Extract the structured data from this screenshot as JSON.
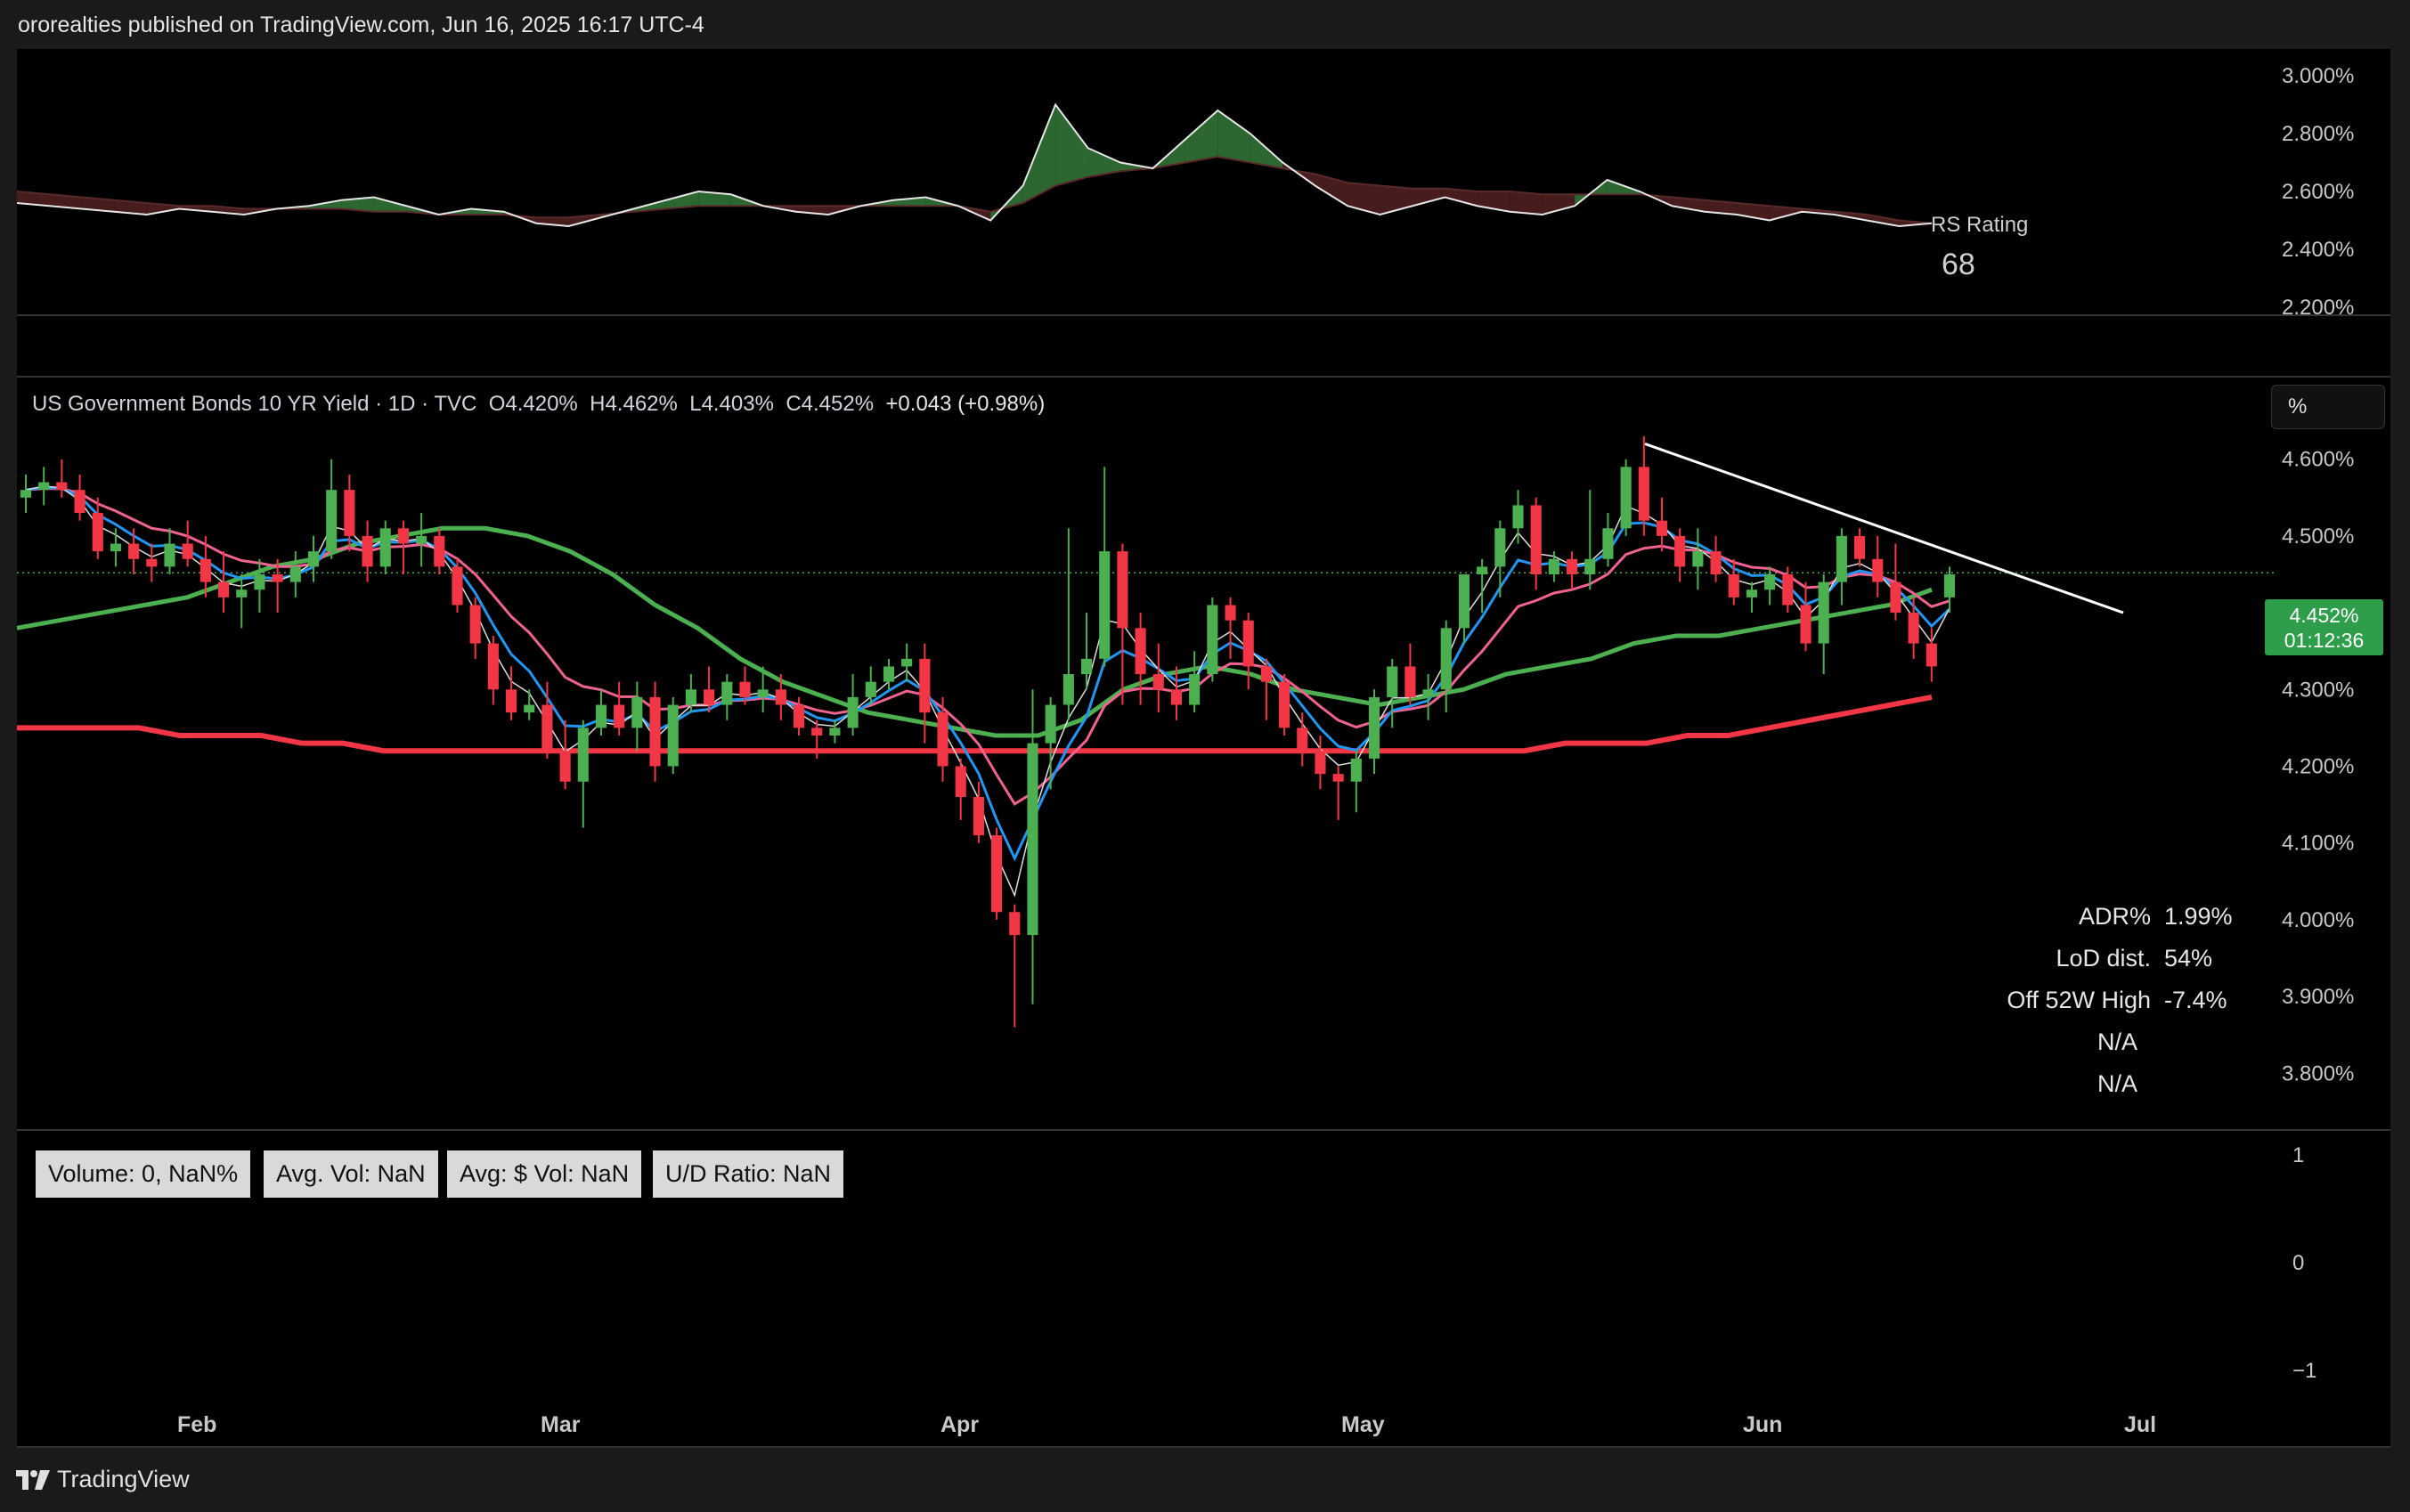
{
  "header": {
    "text": "ororealties published on TradingView.com, Jun 16, 2025 16:17 UTC-4"
  },
  "footer": {
    "brand": "TradingView"
  },
  "rs_panel": {
    "label": "RS Rating",
    "value": "68",
    "axis_ticks": [
      "3.000%",
      "2.800%",
      "2.600%",
      "2.400%",
      "2.200%"
    ]
  },
  "legend": {
    "symbol": "US Government Bonds 10 YR Yield · 1D · TVC",
    "o_label": "O",
    "o_value": "4.420%",
    "h_label": "H",
    "h_value": "4.462%",
    "l_label": "L",
    "l_value": "4.403%",
    "c_label": "C",
    "c_value": "4.452%",
    "change": "+0.043 (+0.98%)"
  },
  "scale_button": "%",
  "price_tag": {
    "price": "4.452%",
    "countdown": "01:12:36"
  },
  "stats": [
    {
      "label": "ADR%",
      "value": "1.99%"
    },
    {
      "label": "LoD dist.",
      "value": "54%"
    },
    {
      "label": "Off 52W High",
      "value": "-7.4%"
    },
    {
      "label": "N/A",
      "value": ""
    },
    {
      "label": "N/A",
      "value": ""
    }
  ],
  "volume_boxes": [
    "Volume: 0, NaN%",
    "Avg. Vol: NaN",
    "Avg: $ Vol: NaN",
    "U/D Ratio: NaN"
  ],
  "volume_axis_ticks": [
    "1",
    "0",
    "−1"
  ],
  "colors": {
    "up": "#4caf50",
    "down": "#f23645",
    "ma_green": "#4caf50",
    "ma_red": "#f23645",
    "ma_blue": "#2196f3",
    "ma_pink": "#f06292",
    "ma_cyan": "#26c6da",
    "rs_up": "#2e6b34",
    "rs_down": "#4a1e1e"
  },
  "chart_data": {
    "type": "candlestick",
    "title": "US Government Bonds 10 YR Yield · 1D · TVC",
    "y_unit": "%",
    "ylim": [
      3.77,
      4.69
    ],
    "y_ticks": [
      "4.600%",
      "4.500%",
      "4.400%",
      "4.300%",
      "4.200%",
      "4.100%",
      "4.000%",
      "3.900%",
      "3.800%"
    ],
    "x_ticks": [
      "Feb",
      "Mar",
      "Apr",
      "May",
      "Jun",
      "Jul"
    ],
    "last_price": 4.452,
    "candles": [
      [
        4.55,
        4.58,
        4.53,
        4.56
      ],
      [
        4.56,
        4.59,
        4.54,
        4.57
      ],
      [
        4.57,
        4.6,
        4.55,
        4.56
      ],
      [
        4.56,
        4.58,
        4.52,
        4.53
      ],
      [
        4.53,
        4.55,
        4.47,
        4.48
      ],
      [
        4.48,
        4.51,
        4.46,
        4.49
      ],
      [
        4.49,
        4.51,
        4.45,
        4.47
      ],
      [
        4.47,
        4.49,
        4.44,
        4.46
      ],
      [
        4.46,
        4.51,
        4.45,
        4.49
      ],
      [
        4.49,
        4.52,
        4.46,
        4.47
      ],
      [
        4.47,
        4.5,
        4.42,
        4.44
      ],
      [
        4.44,
        4.48,
        4.4,
        4.42
      ],
      [
        4.42,
        4.45,
        4.38,
        4.43
      ],
      [
        4.43,
        4.47,
        4.4,
        4.45
      ],
      [
        4.45,
        4.47,
        4.4,
        4.44
      ],
      [
        4.44,
        4.48,
        4.42,
        4.46
      ],
      [
        4.46,
        4.5,
        4.44,
        4.48
      ],
      [
        4.48,
        4.6,
        4.47,
        4.56
      ],
      [
        4.56,
        4.58,
        4.48,
        4.5
      ],
      [
        4.5,
        4.52,
        4.44,
        4.46
      ],
      [
        4.46,
        4.52,
        4.45,
        4.51
      ],
      [
        4.51,
        4.52,
        4.45,
        4.49
      ],
      [
        4.49,
        4.53,
        4.46,
        4.5
      ],
      [
        4.5,
        4.51,
        4.45,
        4.46
      ],
      [
        4.46,
        4.47,
        4.4,
        4.41
      ],
      [
        4.41,
        4.42,
        4.34,
        4.36
      ],
      [
        4.36,
        4.37,
        4.28,
        4.3
      ],
      [
        4.3,
        4.33,
        4.26,
        4.27
      ],
      [
        4.27,
        4.3,
        4.26,
        4.28
      ],
      [
        4.28,
        4.31,
        4.21,
        4.22
      ],
      [
        4.22,
        4.26,
        4.17,
        4.18
      ],
      [
        4.18,
        4.26,
        4.12,
        4.25
      ],
      [
        4.25,
        4.3,
        4.24,
        4.28
      ],
      [
        4.28,
        4.31,
        4.24,
        4.25
      ],
      [
        4.25,
        4.31,
        4.22,
        4.29
      ],
      [
        4.29,
        4.31,
        4.18,
        4.2
      ],
      [
        4.2,
        4.29,
        4.19,
        4.28
      ],
      [
        4.28,
        4.32,
        4.27,
        4.3
      ],
      [
        4.3,
        4.33,
        4.27,
        4.28
      ],
      [
        4.28,
        4.32,
        4.26,
        4.31
      ],
      [
        4.31,
        4.33,
        4.28,
        4.29
      ],
      [
        4.29,
        4.33,
        4.27,
        4.3
      ],
      [
        4.3,
        4.32,
        4.26,
        4.28
      ],
      [
        4.28,
        4.29,
        4.24,
        4.25
      ],
      [
        4.25,
        4.26,
        4.21,
        4.24
      ],
      [
        4.24,
        4.26,
        4.23,
        4.25
      ],
      [
        4.25,
        4.32,
        4.24,
        4.29
      ],
      [
        4.29,
        4.33,
        4.28,
        4.31
      ],
      [
        4.31,
        4.34,
        4.3,
        4.33
      ],
      [
        4.33,
        4.36,
        4.31,
        4.34
      ],
      [
        4.34,
        4.36,
        4.23,
        4.27
      ],
      [
        4.27,
        4.29,
        4.18,
        4.2
      ],
      [
        4.2,
        4.21,
        4.13,
        4.16
      ],
      [
        4.16,
        4.18,
        4.1,
        4.11
      ],
      [
        4.11,
        4.12,
        4.0,
        4.01
      ],
      [
        4.01,
        4.02,
        3.86,
        3.98
      ],
      [
        3.98,
        4.3,
        3.89,
        4.23
      ],
      [
        4.23,
        4.29,
        4.17,
        4.28
      ],
      [
        4.28,
        4.51,
        4.26,
        4.32
      ],
      [
        4.32,
        4.4,
        4.3,
        4.34
      ],
      [
        4.34,
        4.59,
        4.33,
        4.48
      ],
      [
        4.48,
        4.49,
        4.28,
        4.38
      ],
      [
        4.38,
        4.4,
        4.28,
        4.32
      ],
      [
        4.32,
        4.36,
        4.27,
        4.3
      ],
      [
        4.3,
        4.33,
        4.26,
        4.28
      ],
      [
        4.28,
        4.35,
        4.27,
        4.32
      ],
      [
        4.32,
        4.42,
        4.31,
        4.41
      ],
      [
        4.41,
        4.42,
        4.34,
        4.39
      ],
      [
        4.39,
        4.4,
        4.3,
        4.33
      ],
      [
        4.33,
        4.34,
        4.26,
        4.31
      ],
      [
        4.31,
        4.32,
        4.24,
        4.25
      ],
      [
        4.25,
        4.27,
        4.2,
        4.22
      ],
      [
        4.22,
        4.24,
        4.17,
        4.19
      ],
      [
        4.19,
        4.2,
        4.13,
        4.18
      ],
      [
        4.18,
        4.22,
        4.14,
        4.21
      ],
      [
        4.21,
        4.3,
        4.19,
        4.29
      ],
      [
        4.29,
        4.34,
        4.25,
        4.33
      ],
      [
        4.33,
        4.36,
        4.28,
        4.29
      ],
      [
        4.29,
        4.32,
        4.26,
        4.3
      ],
      [
        4.3,
        4.39,
        4.27,
        4.38
      ],
      [
        4.38,
        4.45,
        4.36,
        4.45
      ],
      [
        4.45,
        4.47,
        4.4,
        4.46
      ],
      [
        4.46,
        4.52,
        4.42,
        4.51
      ],
      [
        4.51,
        4.56,
        4.49,
        4.54
      ],
      [
        4.54,
        4.55,
        4.43,
        4.45
      ],
      [
        4.45,
        4.48,
        4.44,
        4.47
      ],
      [
        4.47,
        4.48,
        4.43,
        4.45
      ],
      [
        4.45,
        4.56,
        4.43,
        4.47
      ],
      [
        4.47,
        4.53,
        4.46,
        4.51
      ],
      [
        4.51,
        4.6,
        4.5,
        4.59
      ],
      [
        4.59,
        4.63,
        4.5,
        4.52
      ],
      [
        4.52,
        4.55,
        4.48,
        4.5
      ],
      [
        4.5,
        4.51,
        4.44,
        4.46
      ],
      [
        4.46,
        4.51,
        4.43,
        4.48
      ],
      [
        4.48,
        4.5,
        4.44,
        4.45
      ],
      [
        4.45,
        4.47,
        4.41,
        4.42
      ],
      [
        4.42,
        4.44,
        4.4,
        4.43
      ],
      [
        4.43,
        4.46,
        4.41,
        4.45
      ],
      [
        4.45,
        4.46,
        4.4,
        4.41
      ],
      [
        4.41,
        4.44,
        4.35,
        4.36
      ],
      [
        4.36,
        4.45,
        4.32,
        4.44
      ],
      [
        4.44,
        4.51,
        4.41,
        4.5
      ],
      [
        4.5,
        4.51,
        4.46,
        4.47
      ],
      [
        4.47,
        4.5,
        4.42,
        4.44
      ],
      [
        4.44,
        4.49,
        4.39,
        4.4
      ],
      [
        4.4,
        4.42,
        4.34,
        4.36
      ],
      [
        4.36,
        4.38,
        4.31,
        4.33
      ],
      [
        4.42,
        4.46,
        4.4,
        4.45
      ]
    ],
    "ma_20d_green": [
      4.38,
      4.39,
      4.4,
      4.41,
      4.42,
      4.44,
      4.46,
      4.47,
      4.49,
      4.5,
      4.51,
      4.51,
      4.5,
      4.48,
      4.45,
      4.41,
      4.38,
      4.34,
      4.31,
      4.29,
      4.27,
      4.26,
      4.25,
      4.24,
      4.24,
      4.26,
      4.3,
      4.32,
      4.33,
      4.32,
      4.3,
      4.29,
      4.28,
      4.29,
      4.3,
      4.32,
      4.33,
      4.34,
      4.36,
      4.37,
      4.37,
      4.38,
      4.39,
      4.4,
      4.41,
      4.43
    ],
    "ma_200d_red": [
      4.25,
      4.25,
      4.25,
      4.25,
      4.24,
      4.24,
      4.24,
      4.23,
      4.23,
      4.22,
      4.22,
      4.22,
      4.22,
      4.22,
      4.22,
      4.22,
      4.22,
      4.22,
      4.22,
      4.22,
      4.22,
      4.22,
      4.22,
      4.22,
      4.22,
      4.22,
      4.22,
      4.22,
      4.22,
      4.22,
      4.22,
      4.22,
      4.22,
      4.22,
      4.22,
      4.22,
      4.22,
      4.22,
      4.23,
      4.23,
      4.23,
      4.24,
      4.24,
      4.25,
      4.26,
      4.27,
      4.28,
      4.29
    ],
    "trendline": [
      [
        4.62,
        4.4
      ]
    ],
    "rs_line": [
      2.56,
      2.55,
      2.54,
      2.53,
      2.52,
      2.54,
      2.53,
      2.52,
      2.54,
      2.55,
      2.57,
      2.58,
      2.55,
      2.52,
      2.54,
      2.53,
      2.49,
      2.48,
      2.51,
      2.54,
      2.57,
      2.6,
      2.59,
      2.55,
      2.53,
      2.52,
      2.55,
      2.57,
      2.58,
      2.55,
      2.5,
      2.62,
      2.9,
      2.75,
      2.7,
      2.68,
      2.78,
      2.88,
      2.8,
      2.7,
      2.62,
      2.55,
      2.52,
      2.55,
      2.58,
      2.55,
      2.53,
      2.52,
      2.55,
      2.64,
      2.6,
      2.55,
      2.53,
      2.52,
      2.5,
      2.53,
      2.52,
      2.5,
      2.48,
      2.49
    ],
    "rs_ma": [
      2.6,
      2.59,
      2.58,
      2.57,
      2.56,
      2.55,
      2.55,
      2.54,
      2.54,
      2.54,
      2.54,
      2.53,
      2.53,
      2.52,
      2.52,
      2.52,
      2.51,
      2.51,
      2.52,
      2.53,
      2.54,
      2.55,
      2.55,
      2.55,
      2.55,
      2.55,
      2.55,
      2.55,
      2.55,
      2.55,
      2.53,
      2.56,
      2.62,
      2.65,
      2.67,
      2.68,
      2.7,
      2.72,
      2.7,
      2.68,
      2.66,
      2.63,
      2.62,
      2.61,
      2.61,
      2.6,
      2.6,
      2.59,
      2.59,
      2.59,
      2.59,
      2.58,
      2.57,
      2.56,
      2.55,
      2.54,
      2.53,
      2.52,
      2.5,
      2.49
    ]
  }
}
